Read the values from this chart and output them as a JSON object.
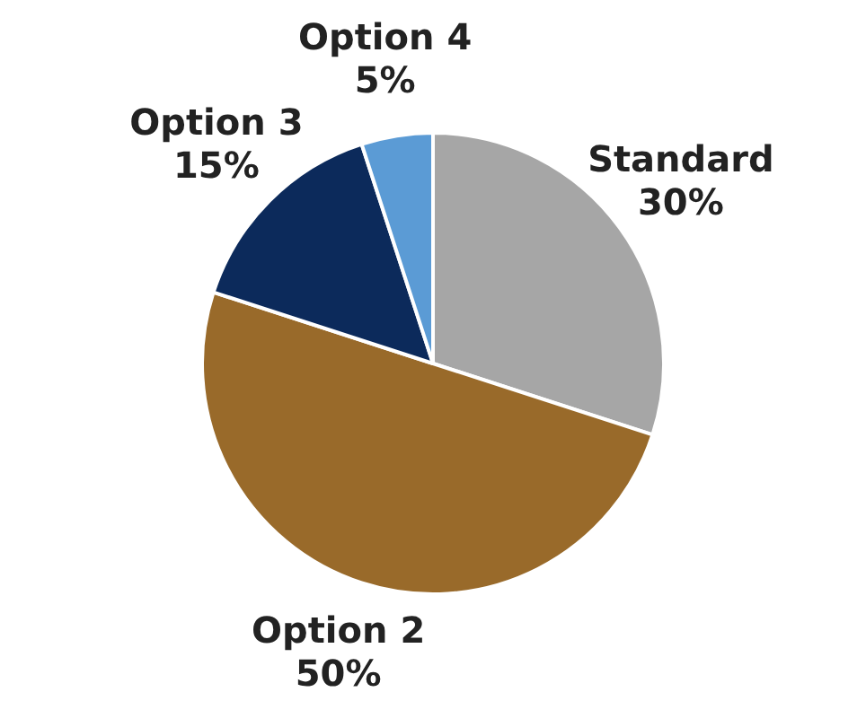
{
  "chart_data": {
    "type": "pie",
    "categories": [
      "Standard",
      "Option 2",
      "Option 3",
      "Option 4"
    ],
    "values": [
      30,
      50,
      15,
      5
    ],
    "colors": [
      "#a6a6a6",
      "#996a2a",
      "#0c2a5b",
      "#5b9bd5"
    ],
    "value_labels": [
      "30%",
      "50%",
      "15%",
      "5%"
    ],
    "legend": false
  }
}
